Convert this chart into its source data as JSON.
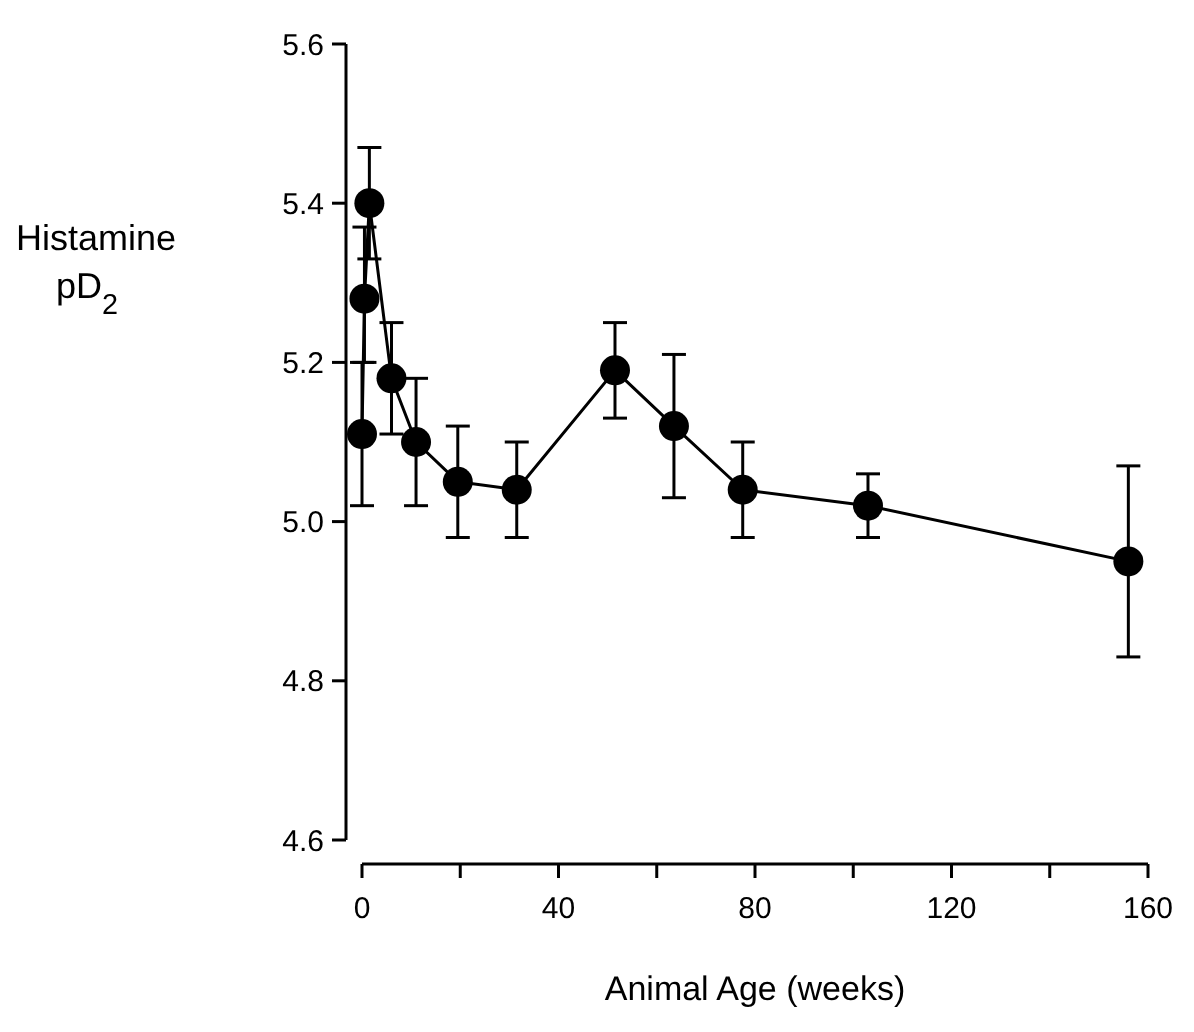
{
  "chart_data": {
    "type": "line",
    "xlabel": "Animal Age (weeks)",
    "ylabel": "Histamine pD$_{2}$",
    "x": [
      0,
      0.5,
      1.5,
      6,
      11,
      19.5,
      31.5,
      51.5,
      63.5,
      77.5,
      103,
      156
    ],
    "series": [
      {
        "color": "#000000",
        "values": [
          5.11,
          5.28,
          5.4,
          5.18,
          5.1,
          5.05,
          5.04,
          5.19,
          5.12,
          5.04,
          5.02,
          4.95
        ],
        "errors": [
          [
            5.02,
            5.2
          ],
          [
            5.2,
            5.37
          ],
          [
            5.33,
            5.47
          ],
          [
            5.11,
            5.25
          ],
          [
            5.02,
            5.18
          ],
          [
            4.98,
            5.12
          ],
          [
            4.98,
            5.1
          ],
          [
            5.13,
            5.25
          ],
          [
            5.03,
            5.21
          ],
          [
            4.98,
            5.1
          ],
          [
            4.98,
            5.06
          ],
          [
            4.83,
            5.07
          ]
        ]
      }
    ],
    "xlim": [
      0,
      160
    ],
    "xticks": [
      0,
      {
        "value": 20,
        "label": null
      },
      40,
      {
        "value": 60,
        "label": null
      },
      80,
      {
        "value": 100,
        "label": null
      },
      120,
      {
        "value": 140,
        "label": null
      },
      160
    ],
    "ylim": [
      4.6,
      5.6
    ],
    "yticks": [
      {
        "value": 4.6,
        "label": "4.6"
      },
      {
        "value": 4.8,
        "label": "4.8"
      },
      {
        "value": 5.0,
        "label": "5.0"
      },
      {
        "value": 5.2,
        "label": "5.2"
      },
      {
        "value": 5.4,
        "label": "5.4"
      },
      {
        "value": 5.6,
        "label": "5.6"
      }
    ],
    "marker": "circle",
    "grid": false
  }
}
